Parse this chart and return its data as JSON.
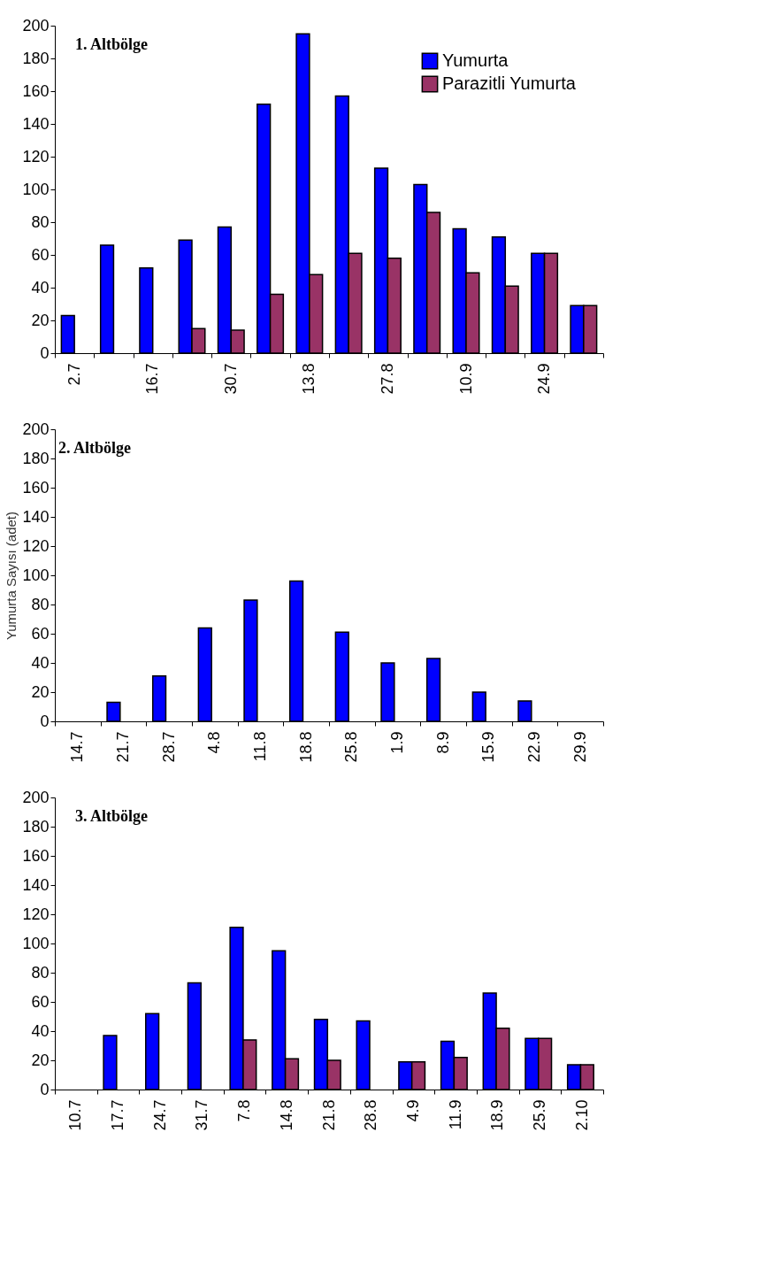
{
  "chart_data": [
    {
      "type": "bar",
      "title": "1. Altbölge",
      "categories": [
        "2.7",
        null,
        "16.7",
        null,
        "30.7",
        null,
        "13.8",
        null,
        "27.8",
        null,
        "10.9",
        null,
        "24.9",
        null
      ],
      "ylim": [
        0,
        200
      ],
      "yticks": [
        0,
        20,
        40,
        60,
        80,
        100,
        120,
        140,
        160,
        180,
        200
      ],
      "grid": false,
      "legend": "top right",
      "series": [
        {
          "name": "Yumurta",
          "color": "#0000ff",
          "values": [
            23,
            66,
            52,
            69,
            77,
            152,
            195,
            157,
            113,
            103,
            76,
            71,
            61,
            29
          ]
        },
        {
          "name": "Parazitli Yumurta",
          "color": "#993366",
          "values": [
            null,
            null,
            null,
            15,
            14,
            36,
            48,
            61,
            58,
            86,
            49,
            41,
            61,
            29
          ]
        }
      ]
    },
    {
      "type": "bar",
      "title": "2. Altbölge",
      "ylabel": "Yumurta   Sayısı   (adet)",
      "categories": [
        "14.7",
        "21.7",
        "28.7",
        "4.8",
        "11.8",
        "18.8",
        "25.8",
        "1.9",
        "8.9",
        "15.9",
        "22.9",
        "29.9"
      ],
      "ylim": [
        0,
        200
      ],
      "yticks": [
        0,
        20,
        40,
        60,
        80,
        100,
        120,
        140,
        160,
        180,
        200
      ],
      "grid": false,
      "series": [
        {
          "color": "#0000ff",
          "values": [
            null,
            13,
            31,
            64,
            83,
            96,
            61,
            40,
            43,
            20,
            14,
            null
          ]
        },
        {
          "color": "#993366",
          "values": [
            null,
            null,
            null,
            null,
            null,
            null,
            null,
            null,
            null,
            null,
            null,
            null
          ]
        }
      ]
    },
    {
      "type": "bar",
      "title": "3. Altbölge",
      "categories": [
        "10.7",
        "17.7",
        "24.7",
        "31.7",
        "7.8",
        "14.8",
        "21.8",
        "28.8",
        "4.9",
        "11.9",
        "18.9",
        "25.9",
        "2.10"
      ],
      "ylim": [
        0,
        200
      ],
      "yticks": [
        0,
        20,
        40,
        60,
        80,
        100,
        120,
        140,
        160,
        180,
        200
      ],
      "grid": false,
      "series": [
        {
          "color": "#0000ff",
          "values": [
            null,
            37,
            52,
            73,
            111,
            95,
            48,
            47,
            19,
            33,
            66,
            35,
            17
          ]
        },
        {
          "color": "#993366",
          "values": [
            null,
            null,
            null,
            null,
            34,
            21,
            20,
            null,
            19,
            22,
            42,
            35,
            17
          ]
        }
      ]
    }
  ]
}
